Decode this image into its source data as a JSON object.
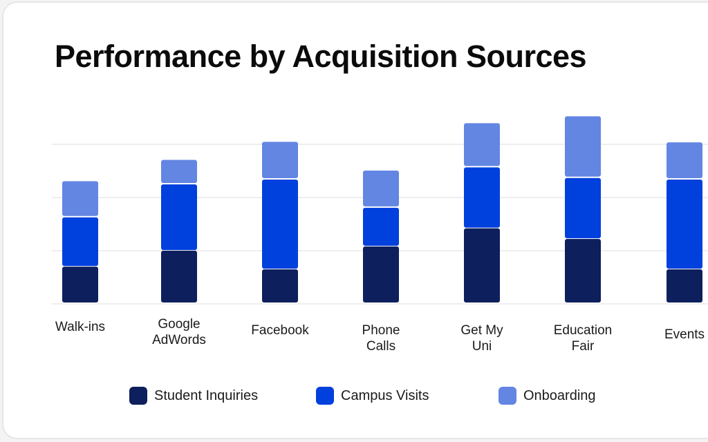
{
  "chart_data": {
    "type": "bar",
    "stacked": true,
    "title": "Performance by Acquisition Sources",
    "xlabel": "",
    "ylabel": "",
    "ylim": [
      0,
      3.5
    ],
    "grid": true,
    "legend_position": "bottom",
    "categories": [
      "Walk-ins",
      "Google\nAdWords",
      "Facebook",
      "Phone\nCalls",
      "Get My\nUni",
      "Education\nFair",
      "Events"
    ],
    "category_labels": [
      [
        "Walk-ins"
      ],
      [
        "Google",
        "AdWords"
      ],
      [
        "Facebook"
      ],
      [
        "Phone",
        "Calls"
      ],
      [
        "Get My",
        "Uni"
      ],
      [
        "Education",
        "Fair"
      ],
      [
        "Events"
      ]
    ],
    "series": [
      {
        "name": "Student Inquiries",
        "color": "#0d1f5c",
        "values": [
          0.7,
          1.0,
          0.65,
          1.08,
          1.42,
          1.22,
          0.65
        ]
      },
      {
        "name": "Campus Visits",
        "color": "#0040dd",
        "values": [
          0.94,
          1.26,
          1.7,
          0.74,
          1.16,
          1.16,
          1.7
        ]
      },
      {
        "name": "Onboarding",
        "color": "#6386e3",
        "values": [
          0.68,
          0.46,
          0.71,
          0.7,
          0.83,
          1.16,
          0.7
        ]
      }
    ]
  }
}
